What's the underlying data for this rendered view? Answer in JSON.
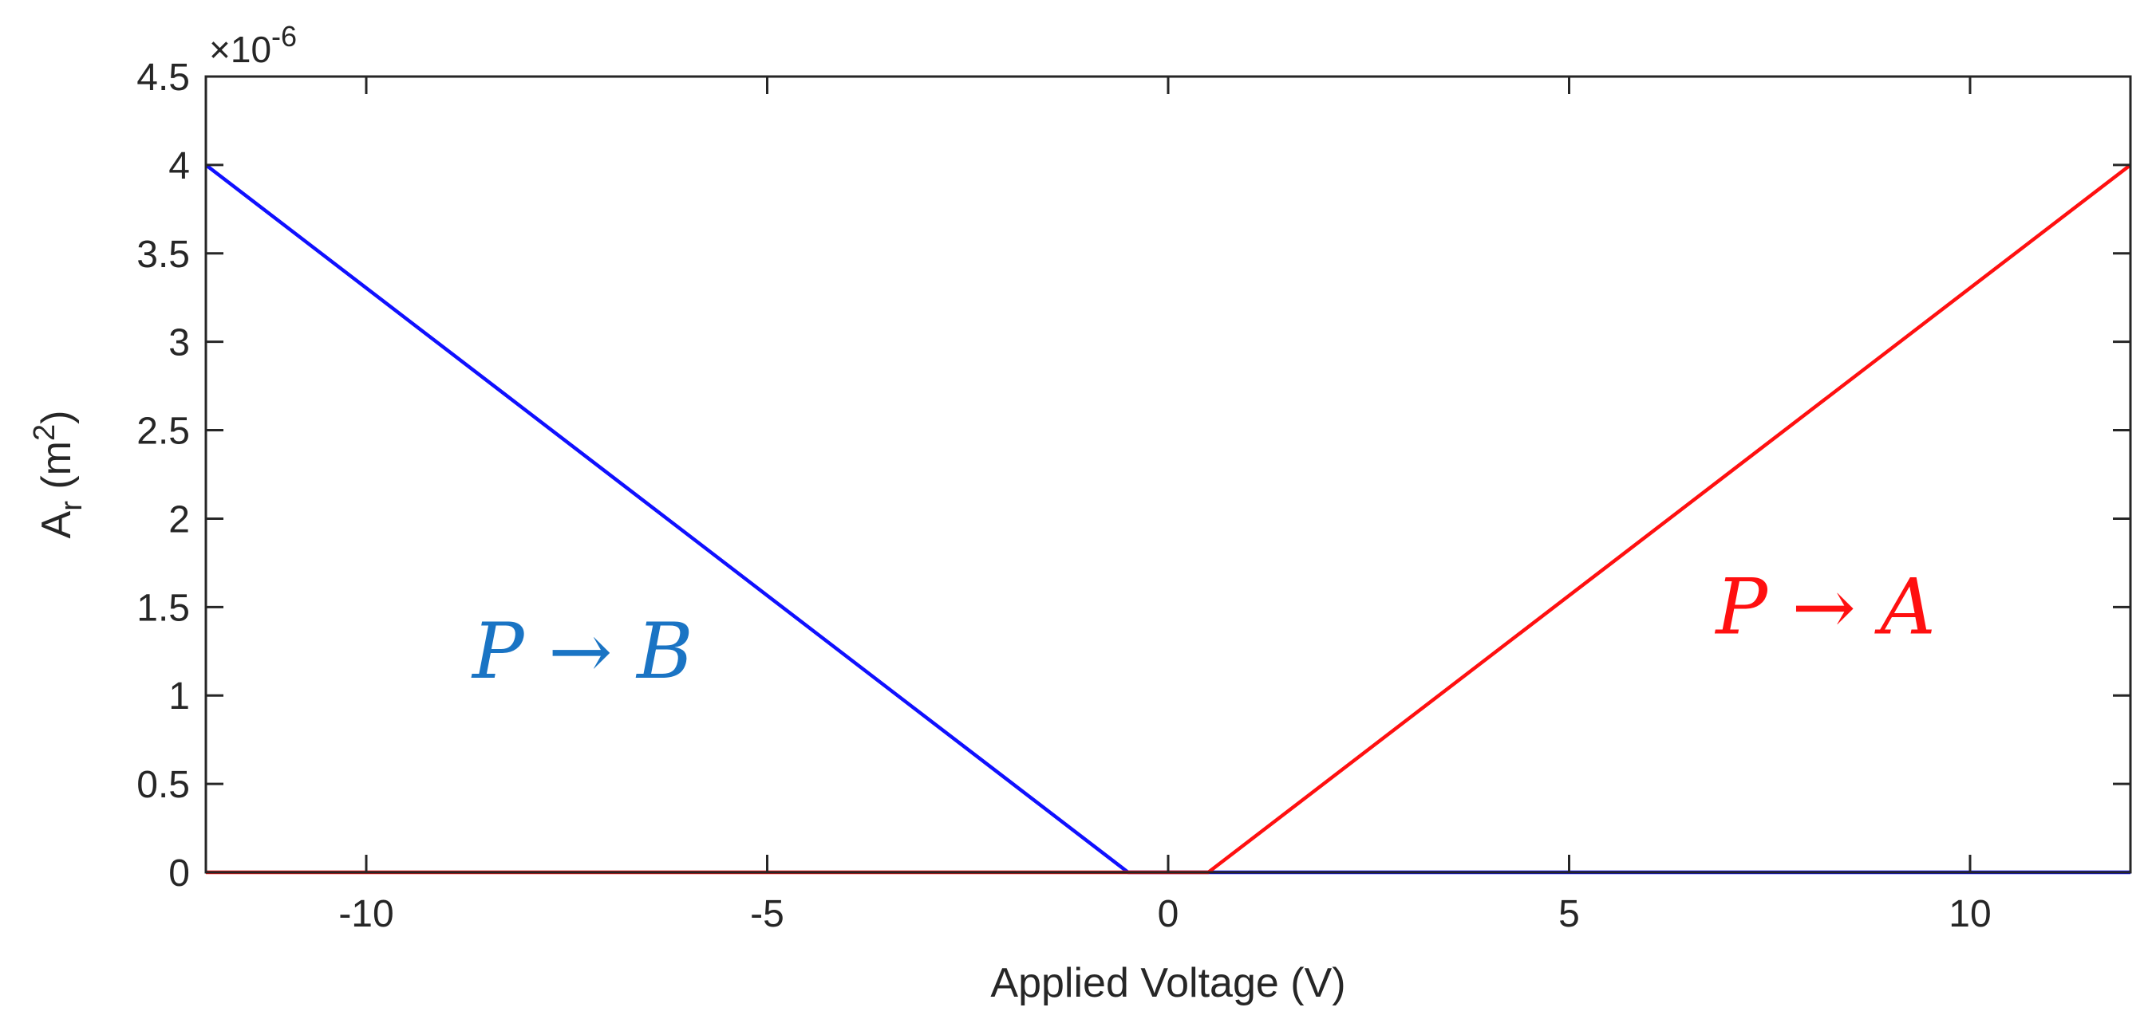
{
  "chart_data": {
    "type": "line",
    "xlabel": "Applied Voltage (V)",
    "ylabel_main": "A",
    "ylabel_sub": "r",
    "ylabel_unit_open": " (m",
    "ylabel_unit_sup": "2",
    "ylabel_unit_close": ")",
    "y_exponent_prefix": "×10",
    "y_exponent_power": "-6",
    "xlim": [
      -12,
      12
    ],
    "ylim": [
      0,
      4.5
    ],
    "x_ticks": [
      -10,
      -5,
      0,
      5,
      10
    ],
    "x_tick_labels": [
      "-10",
      "-5",
      "0",
      "5",
      "10"
    ],
    "y_ticks": [
      0,
      0.5,
      1,
      1.5,
      2,
      2.5,
      3,
      3.5,
      4,
      4.5
    ],
    "y_tick_labels": [
      "0",
      "0.5",
      "1",
      "1.5",
      "2",
      "2.5",
      "3",
      "3.5",
      "4",
      "4.5"
    ],
    "grid": false,
    "series": [
      {
        "color": "#1010ff",
        "x": [
          -12,
          -0.5,
          12
        ],
        "y": [
          4,
          0,
          0
        ]
      },
      {
        "color": "#ff1010",
        "x": [
          -12,
          0.5,
          12
        ],
        "y": [
          0,
          0,
          4
        ]
      }
    ],
    "annotations": [
      {
        "text": "P → B",
        "color": "#1a74c4",
        "x": -7.3,
        "y": 1.1
      },
      {
        "text": "P → A",
        "color": "#ff1010",
        "x": 8.2,
        "y": 1.35
      }
    ]
  }
}
